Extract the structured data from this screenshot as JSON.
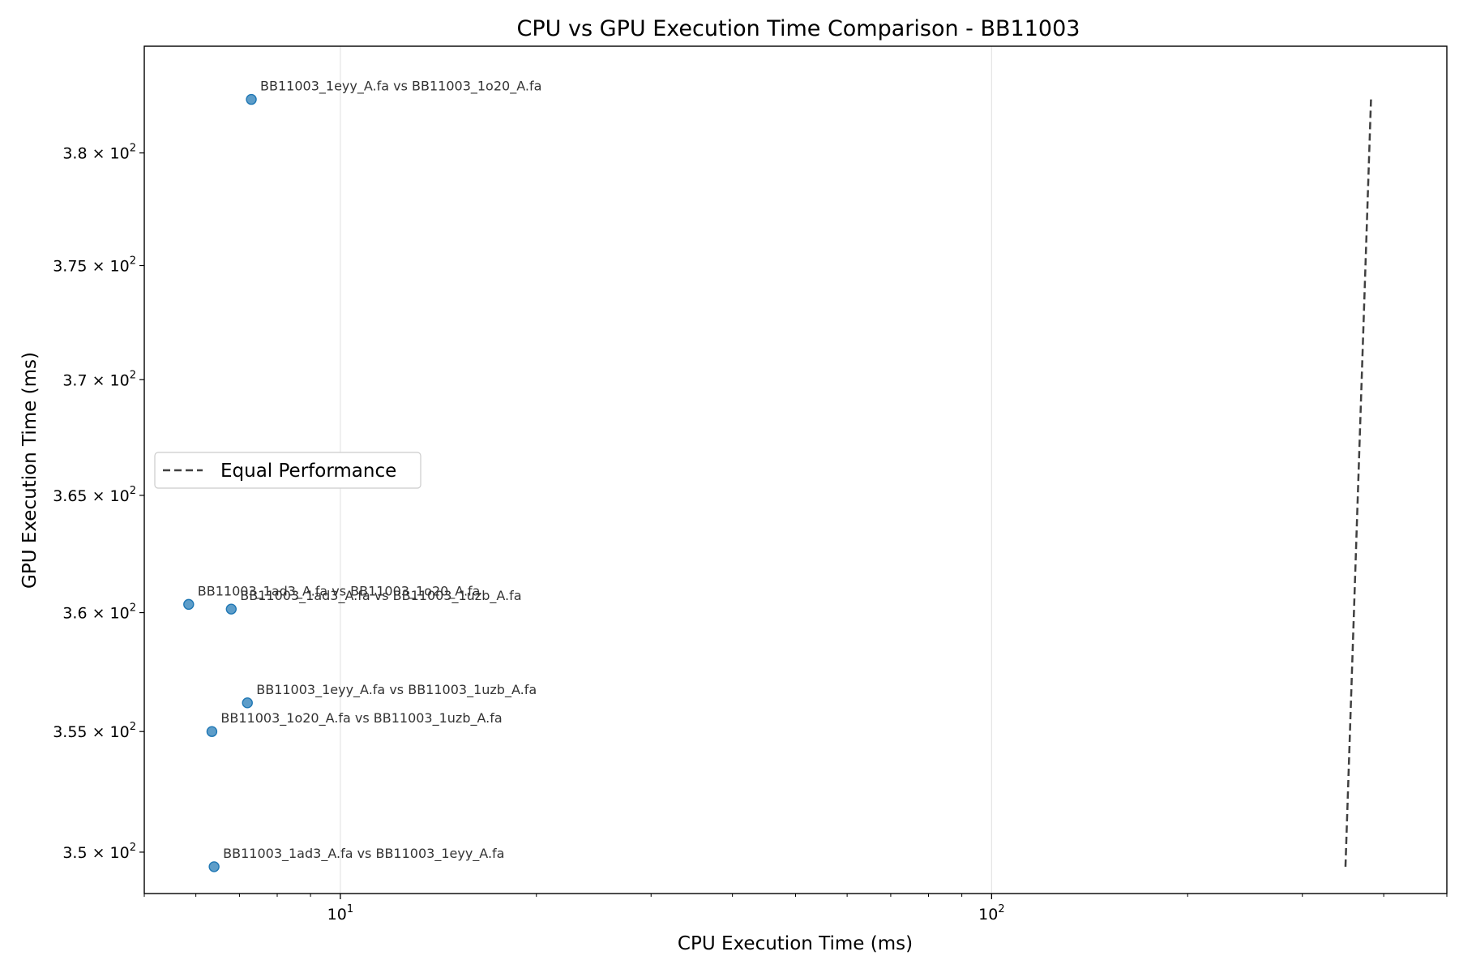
{
  "chart_data": {
    "type": "scatter",
    "title": "CPU vs GPU Execution Time Comparison - BB11003",
    "xlabel": "CPU Execution Time (ms)",
    "ylabel": "GPU Execution Time (ms)",
    "xscale": "log",
    "yscale": "log",
    "xlim": [
      5.0,
      500.0
    ],
    "ylim": [
      348.3,
      384.8
    ],
    "grid": "x-major",
    "legend": {
      "position": "center-left",
      "entries": [
        "Equal Performance"
      ]
    },
    "colors": {
      "points": "#1f77b4",
      "equal_line": "#404040",
      "grid": "#e6e6e6"
    },
    "x_ticks": [
      {
        "value": 10,
        "base": "10",
        "exp": "1"
      },
      {
        "value": 100,
        "base": "10",
        "exp": "2"
      }
    ],
    "y_ticks": [
      {
        "value": 350,
        "mant": "3.5",
        "exp": "2"
      },
      {
        "value": 355,
        "mant": "3.55",
        "exp": "2"
      },
      {
        "value": 360,
        "mant": "3.6",
        "exp": "2"
      },
      {
        "value": 365,
        "mant": "3.65",
        "exp": "2"
      },
      {
        "value": 370,
        "mant": "3.7",
        "exp": "2"
      },
      {
        "value": 375,
        "mant": "3.75",
        "exp": "2"
      },
      {
        "value": 380,
        "mant": "3.8",
        "exp": "2"
      }
    ],
    "points": [
      {
        "x": 7.3,
        "y": 382.4,
        "label": "BB11003_1eyy_A.fa vs BB11003_1o20_A.fa"
      },
      {
        "x": 5.85,
        "y": 360.35,
        "label": "BB11003_1ad3_A.fa vs BB11003_1o20_A.fa"
      },
      {
        "x": 6.8,
        "y": 360.15,
        "label": "BB11003_1ad3_A.fa vs BB11003_1uzb_A.fa"
      },
      {
        "x": 7.2,
        "y": 356.2,
        "label": "BB11003_1eyy_A.fa vs BB11003_1uzb_A.fa"
      },
      {
        "x": 6.35,
        "y": 355.0,
        "label": "BB11003_1o20_A.fa vs BB11003_1uzb_A.fa"
      },
      {
        "x": 6.4,
        "y": 349.4,
        "label": "BB11003_1ad3_A.fa vs BB11003_1eyy_A.fa"
      }
    ],
    "equal_performance_line": {
      "x": [
        349.4,
        382.4
      ],
      "y": [
        349.4,
        382.4
      ]
    }
  }
}
